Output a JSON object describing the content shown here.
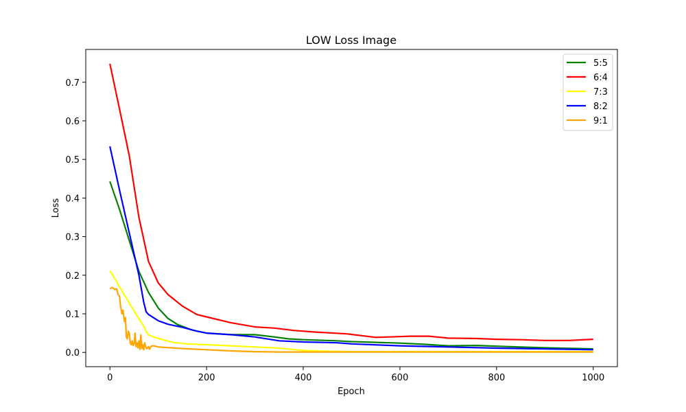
{
  "chart_data": {
    "type": "line",
    "title": "LOW Loss Image",
    "xlabel": "Epoch",
    "ylabel": "Loss",
    "xlim": [
      -50,
      1050
    ],
    "ylim": [
      -0.037,
      0.785
    ],
    "xticks": [
      "0",
      "200",
      "400",
      "600",
      "800",
      "1000"
    ],
    "xtick_values": [
      0,
      200,
      400,
      600,
      800,
      1000
    ],
    "yticks": [
      "0.0",
      "0.1",
      "0.2",
      "0.3",
      "0.4",
      "0.5",
      "0.6",
      "0.7"
    ],
    "ytick_values": [
      0,
      0.1,
      0.2,
      0.3,
      0.4,
      0.5,
      0.6,
      0.7
    ],
    "grid": false,
    "legend_position": "top-right",
    "series": [
      {
        "name": "5:5",
        "color": "#008000",
        "x": [
          0,
          20,
          40,
          60,
          80,
          100,
          120,
          140,
          170,
          200,
          250,
          300,
          340,
          370,
          400,
          470,
          500,
          600,
          650,
          700,
          760,
          800,
          900,
          1000
        ],
        "y": [
          0.443,
          0.37,
          0.29,
          0.21,
          0.155,
          0.115,
          0.088,
          0.072,
          0.058,
          0.05,
          0.046,
          0.046,
          0.04,
          0.035,
          0.033,
          0.03,
          0.028,
          0.024,
          0.021,
          0.017,
          0.018,
          0.016,
          0.012,
          0.009
        ]
      },
      {
        "name": "6:4",
        "color": "#ff0000",
        "x": [
          0,
          20,
          40,
          60,
          80,
          100,
          120,
          150,
          180,
          200,
          250,
          300,
          340,
          380,
          420,
          490,
          550,
          600,
          620,
          660,
          700,
          760,
          800,
          850,
          900,
          950,
          1000
        ],
        "y": [
          0.748,
          0.63,
          0.51,
          0.35,
          0.235,
          0.18,
          0.15,
          0.12,
          0.098,
          0.092,
          0.077,
          0.066,
          0.063,
          0.057,
          0.053,
          0.048,
          0.039,
          0.041,
          0.042,
          0.042,
          0.037,
          0.036,
          0.034,
          0.033,
          0.031,
          0.031,
          0.034
        ]
      },
      {
        "name": "7:3",
        "color": "#ffff00",
        "x": [
          0,
          20,
          40,
          60,
          70,
          75,
          80,
          100,
          130,
          160,
          200,
          250,
          300,
          350,
          400,
          450,
          500,
          600,
          700,
          800,
          900,
          1000
        ],
        "y": [
          0.212,
          0.17,
          0.128,
          0.087,
          0.068,
          0.054,
          0.045,
          0.036,
          0.026,
          0.022,
          0.02,
          0.017,
          0.014,
          0.011,
          0.005,
          0.003,
          0.002,
          0.002,
          0.002,
          0.002,
          0.002,
          0.002
        ]
      },
      {
        "name": "8:2",
        "color": "#0000ff",
        "x": [
          0,
          20,
          40,
          60,
          70,
          75,
          80,
          100,
          120,
          150,
          180,
          200,
          250,
          300,
          350,
          400,
          470,
          500,
          600,
          700,
          800,
          900,
          1000
        ],
        "y": [
          0.534,
          0.42,
          0.31,
          0.2,
          0.13,
          0.105,
          0.098,
          0.082,
          0.073,
          0.065,
          0.055,
          0.05,
          0.046,
          0.04,
          0.03,
          0.027,
          0.025,
          0.022,
          0.017,
          0.014,
          0.011,
          0.009,
          0.007
        ]
      },
      {
        "name": "9:1",
        "color": "#ffa500",
        "x": [
          0,
          5,
          10,
          14,
          17,
          20,
          22,
          25,
          27,
          30,
          32,
          34,
          36,
          38,
          40,
          42,
          44,
          46,
          48,
          50,
          52,
          54,
          56,
          58,
          60,
          62,
          64,
          66,
          68,
          70,
          72,
          74,
          76,
          78,
          80,
          82,
          85,
          90,
          100,
          150,
          200,
          250,
          300,
          350,
          400,
          500,
          600,
          700,
          800,
          900,
          1000
        ],
        "y": [
          0.165,
          0.168,
          0.163,
          0.165,
          0.15,
          0.145,
          0.12,
          0.1,
          0.11,
          0.08,
          0.09,
          0.04,
          0.035,
          0.055,
          0.05,
          0.025,
          0.02,
          0.03,
          0.018,
          0.022,
          0.05,
          0.015,
          0.025,
          0.012,
          0.03,
          0.008,
          0.045,
          0.01,
          0.02,
          0.007,
          0.025,
          0.015,
          0.01,
          0.012,
          0.015,
          0.008,
          0.016,
          0.017,
          0.014,
          0.01,
          0.007,
          0.004,
          0.002,
          0.001,
          0.001,
          0.001,
          0.001,
          0.001,
          0.001,
          0.001,
          0.001
        ]
      }
    ]
  }
}
